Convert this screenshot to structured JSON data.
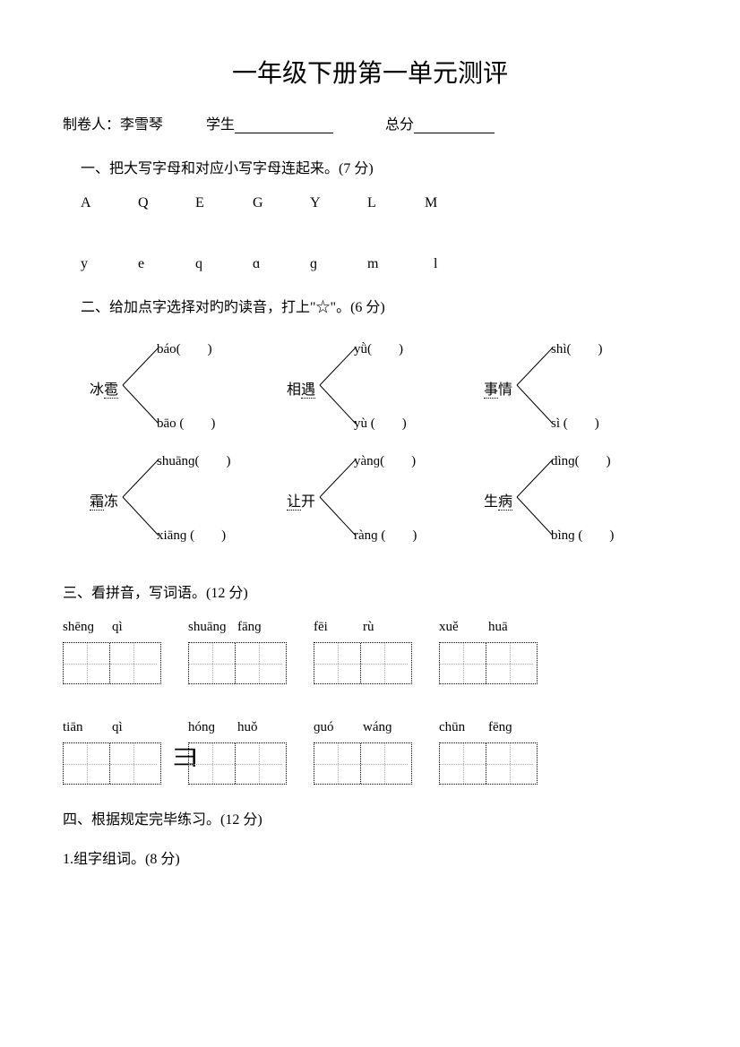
{
  "title": "一年级下册第一单元测评",
  "info": {
    "author_label": "制卷人：李雪琴",
    "student_label": "学生",
    "score_label": "总分"
  },
  "q1": {
    "heading": "一、把大写字母和对应小写字母连起来。(7 分)",
    "uppercase": [
      "A",
      "Q",
      "E",
      "G",
      "Y",
      "L",
      "M"
    ],
    "lowercase": [
      "y",
      "e",
      "q",
      "ɑ",
      "ɡ",
      "m",
      "l"
    ]
  },
  "q2": {
    "heading": "二、给加点字选择对旳旳读音，打上\"☆\"。(6 分)",
    "items": [
      {
        "word": "冰雹",
        "top": "báo",
        "bottom": "bāo"
      },
      {
        "word": "相遇",
        "top": "yǜ",
        "bottom": "yù"
      },
      {
        "word": "事情",
        "top": "shì",
        "bottom": "sì"
      },
      {
        "word": "霜冻",
        "top": "shuānɡ",
        "bottom": "xiānɡ"
      },
      {
        "word": "让开",
        "top": "yànɡ",
        "bottom": "rànɡ"
      },
      {
        "word": "生病",
        "top": "dìnɡ",
        "bottom": "bìnɡ"
      }
    ]
  },
  "q3": {
    "heading": "三、看拼音，写词语。(12 分)",
    "row1": [
      {
        "syll": [
          "shēnɡ",
          "qì"
        ]
      },
      {
        "syll": [
          "shuānɡ",
          "fānɡ"
        ]
      },
      {
        "syll": [
          "fēi",
          "rù"
        ]
      },
      {
        "syll": [
          "xuě",
          "huā"
        ]
      }
    ],
    "row2": [
      {
        "syll": [
          "tiān",
          "qì"
        ]
      },
      {
        "syll": [
          "hónɡ",
          "huǒ"
        ]
      },
      {
        "syll": [
          "ɡuó",
          "wánɡ"
        ]
      },
      {
        "syll": [
          "chūn",
          "fēnɡ"
        ]
      }
    ]
  },
  "q4": {
    "heading": "四、根据规定完毕练习。(12 分)",
    "sub1": "1.组字组词。(8 分)"
  },
  "colors": {
    "text": "#000000",
    "background": "#ffffff",
    "guide": "#aaaaaa"
  }
}
